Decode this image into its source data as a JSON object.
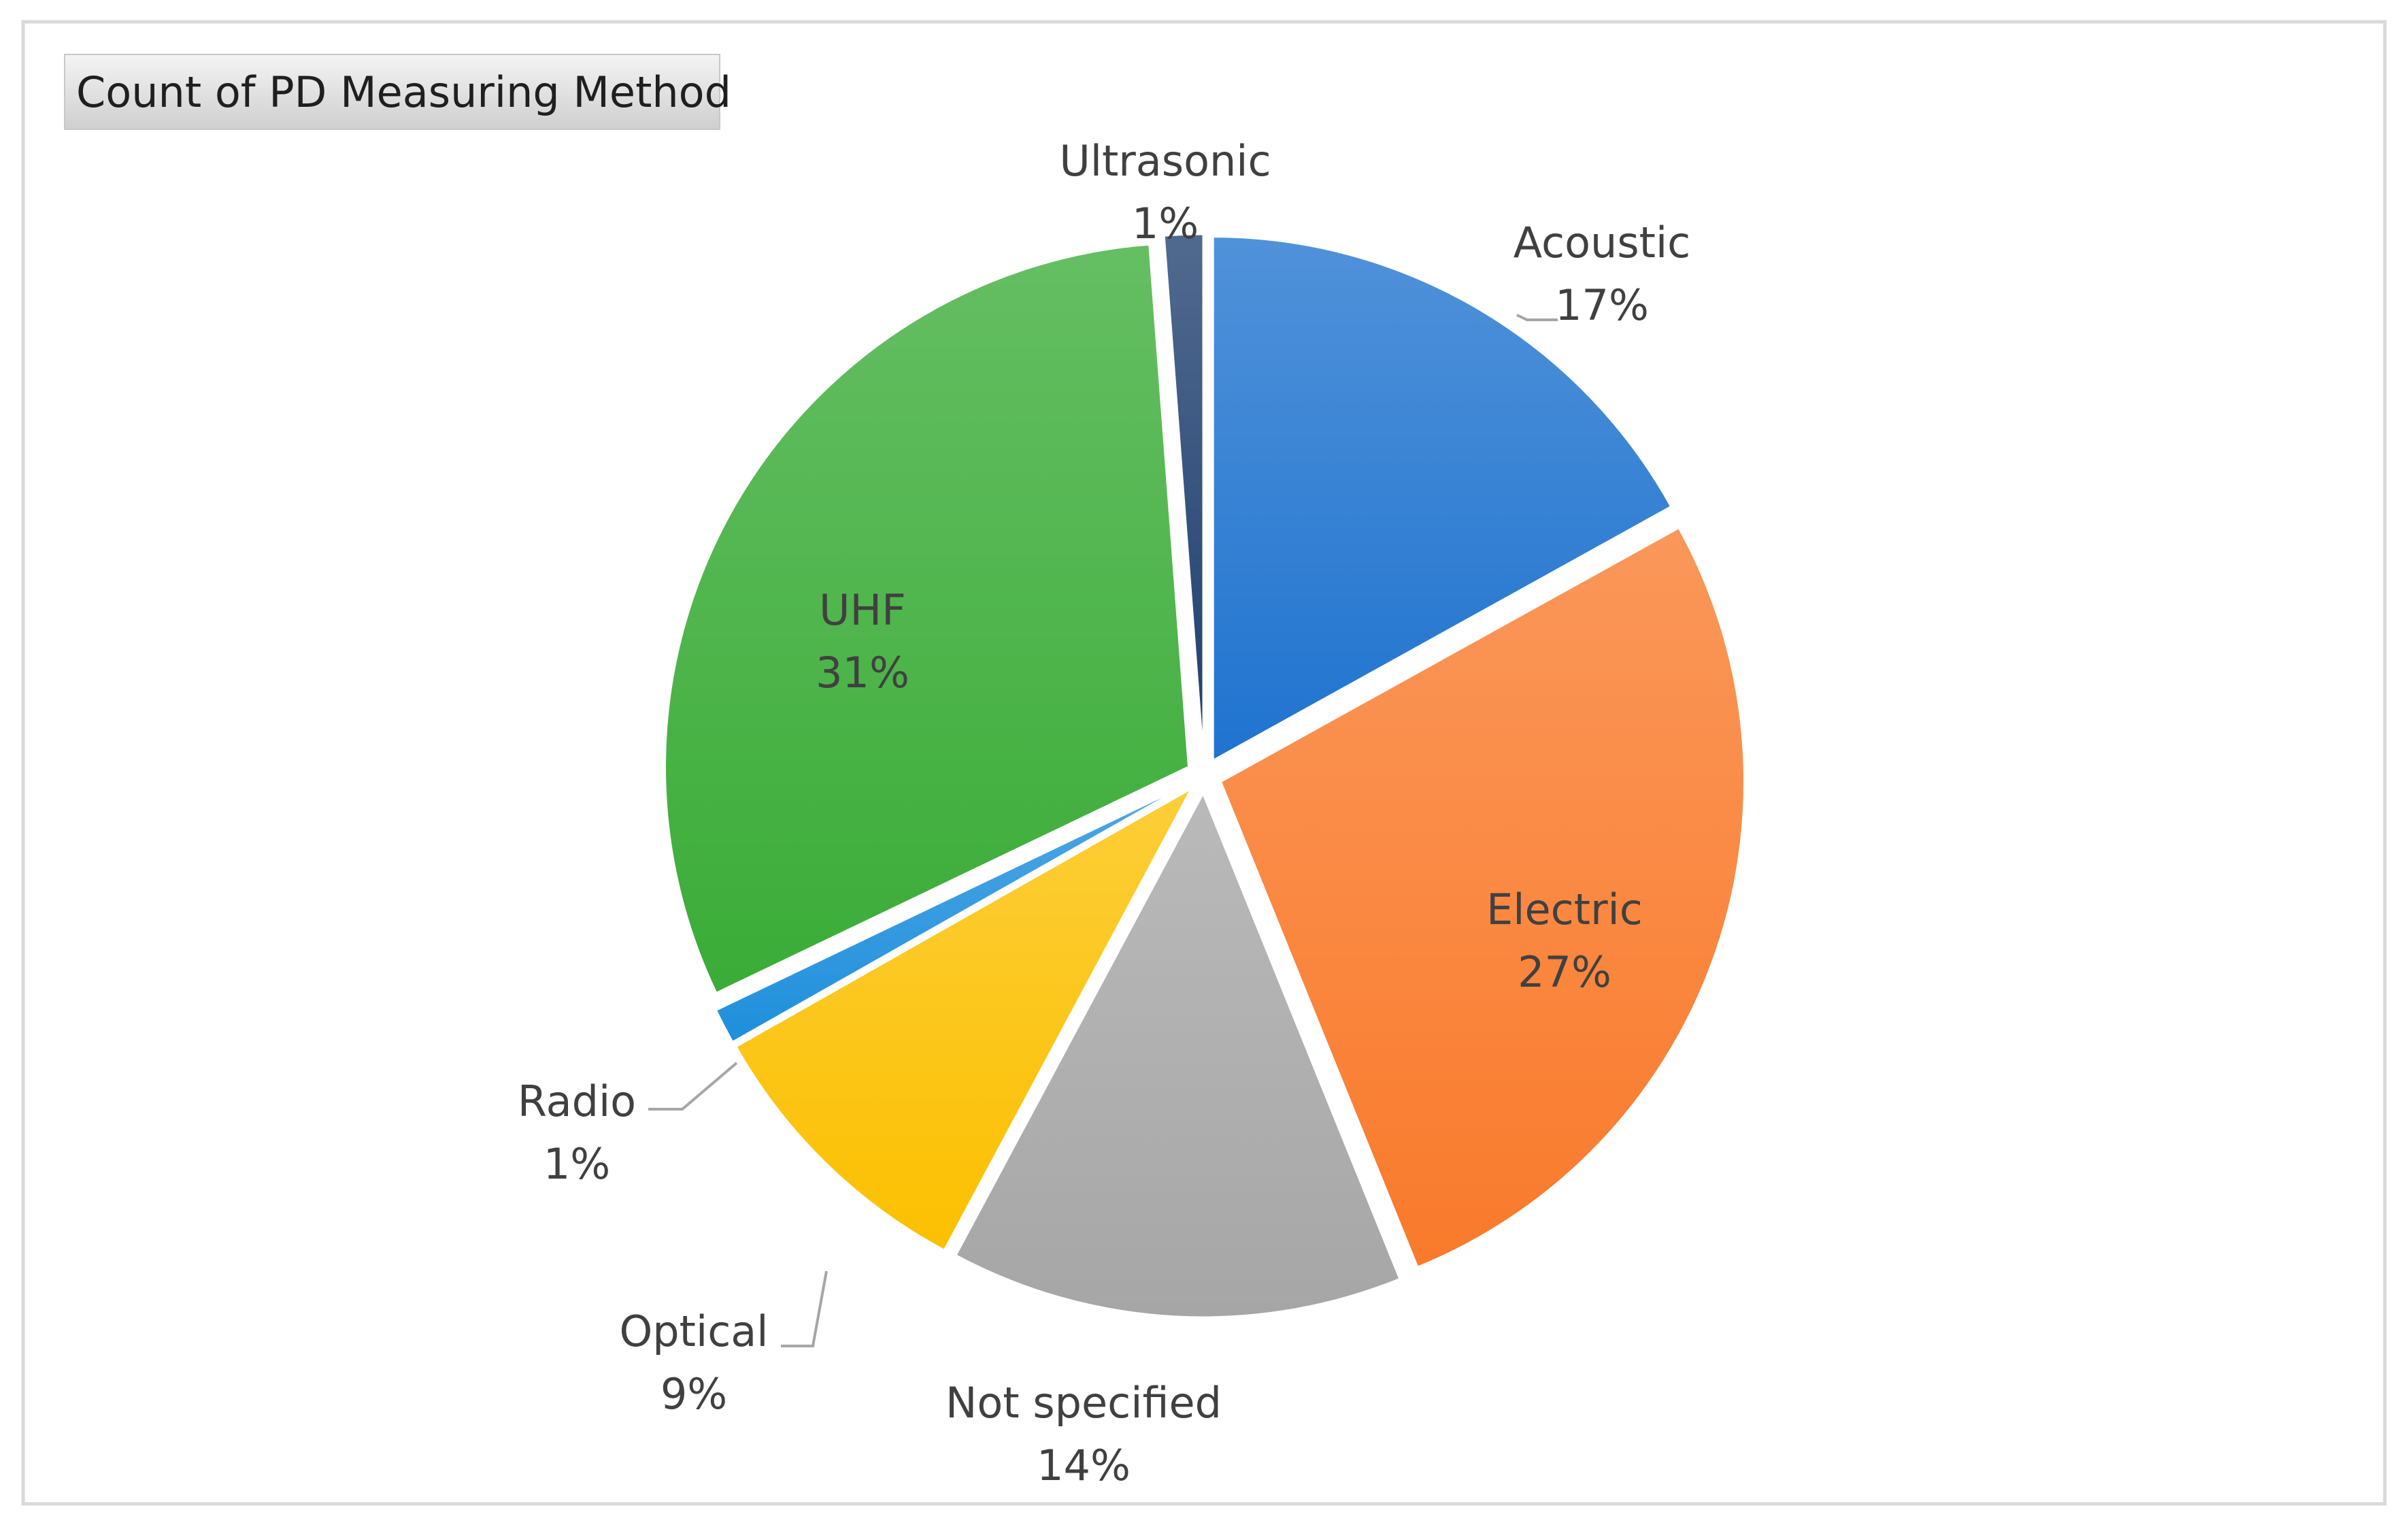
{
  "field_button": {
    "label": "Count of PD Measuring Method"
  },
  "chart_data": {
    "type": "pie",
    "legend": "none",
    "data_labels": "category name and percentage",
    "slices": [
      {
        "category": "Acoustic",
        "percent_label": "17%",
        "value": 17,
        "color": "#1f73cf"
      },
      {
        "category": "Electric",
        "percent_label": "27%",
        "value": 27,
        "color": "#f97a2b"
      },
      {
        "category": "Not specified",
        "percent_label": "14%",
        "value": 14,
        "color": "#a6a6a6"
      },
      {
        "category": "Optical",
        "percent_label": "9%",
        "value": 9,
        "color": "#fcc000"
      },
      {
        "category": "Radio",
        "percent_label": "1%",
        "value": 1.1,
        "color": "#1e8fdc"
      },
      {
        "category": "UHF",
        "percent_label": "31%",
        "value": 31,
        "color": "#3aac37"
      },
      {
        "category": "Ultrasonic",
        "percent_label": "1%",
        "value": 1.2,
        "color": "#1f3f6f"
      }
    ]
  }
}
